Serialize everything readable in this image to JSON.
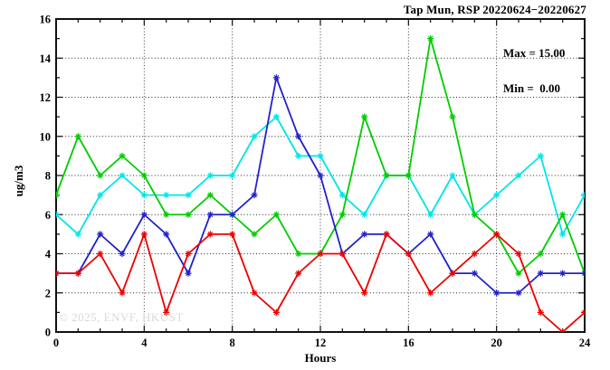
{
  "title": "Tap Mun, RSP 20220624−20220627",
  "stats": {
    "max_label": "Max = 15.00",
    "min_label": "Min =  0.00"
  },
  "watermark": "© 2025, ENVF, HKUST",
  "chart_data": {
    "type": "line",
    "title": "Tap Mun, RSP 20220624−20220627",
    "xlabel": "Hours",
    "ylabel": "ug/m3",
    "xlim": [
      0,
      24
    ],
    "ylim": [
      0,
      16
    ],
    "x_major_ticks": [
      0,
      4,
      8,
      12,
      16,
      20,
      24
    ],
    "y_major_ticks": [
      0,
      2,
      4,
      6,
      8,
      10,
      12,
      14,
      16
    ],
    "x_minor_step": 1,
    "y_minor_step": 1,
    "grid": true,
    "legend": "none",
    "marker": "asterisk",
    "frame_color": "#000000",
    "x": [
      0,
      1,
      2,
      3,
      4,
      5,
      6,
      7,
      8,
      9,
      10,
      11,
      12,
      13,
      14,
      15,
      16,
      17,
      18,
      19,
      20,
      21,
      22,
      23,
      24
    ],
    "series": [
      {
        "name": "cyan-series",
        "color": "#00e5e5",
        "values": [
          6,
          5,
          7,
          8,
          7,
          7,
          7,
          8,
          8,
          10,
          11,
          9,
          9,
          7,
          6,
          8,
          8,
          6,
          8,
          6,
          7,
          8,
          9,
          5,
          7
        ]
      },
      {
        "name": "green-series",
        "color": "#00cc00",
        "values": [
          7,
          10,
          8,
          9,
          8,
          6,
          6,
          7,
          6,
          5,
          6,
          4,
          4,
          6,
          11,
          8,
          8,
          15,
          11,
          6,
          5,
          3,
          4,
          6,
          3
        ]
      },
      {
        "name": "blue-series",
        "color": "#2222cc",
        "values": [
          3,
          3,
          5,
          4,
          6,
          5,
          3,
          6,
          6,
          7,
          13,
          10,
          8,
          4,
          5,
          5,
          4,
          5,
          3,
          3,
          2,
          2,
          3,
          3,
          3
        ]
      },
      {
        "name": "red-series",
        "color": "#ee0000",
        "values": [
          3,
          3,
          4,
          2,
          5,
          1,
          4,
          5,
          5,
          2,
          1,
          3,
          4,
          4,
          2,
          5,
          4,
          2,
          3,
          4,
          5,
          4,
          1,
          0,
          1
        ]
      }
    ],
    "annotations": [
      "Max = 15.00",
      "Min =  0.00"
    ],
    "stats_values": {
      "max": 15.0,
      "min": 0.0
    }
  }
}
